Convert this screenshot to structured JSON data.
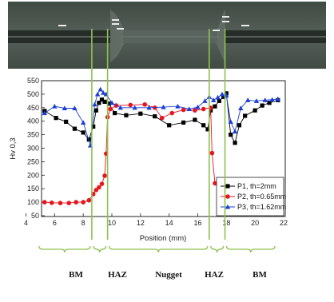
{
  "chart_data": {
    "type": "line",
    "xlabel": "Position (mm)",
    "ylabel": "Hv 0,3",
    "xlim": [
      4,
      22
    ],
    "ylim": [
      50,
      550
    ],
    "x_ticks": [
      4,
      6,
      8,
      10,
      12,
      14,
      16,
      18,
      20,
      22
    ],
    "y_ticks": [
      50,
      100,
      150,
      200,
      250,
      300,
      350,
      400,
      450,
      500,
      550
    ],
    "legend_position": "bottom-right",
    "series": [
      {
        "name": "P1, th=2mm",
        "color": "#000000",
        "marker": "square",
        "points": [
          [
            5.3,
            438
          ],
          [
            6.1,
            412
          ],
          [
            6.8,
            398
          ],
          [
            7.4,
            372
          ],
          [
            8.0,
            358
          ],
          [
            8.4,
            332
          ],
          [
            8.7,
            380
          ],
          [
            8.9,
            440
          ],
          [
            9.1,
            468
          ],
          [
            9.3,
            480
          ],
          [
            9.5,
            472
          ],
          [
            9.8,
            465
          ],
          [
            10.2,
            430
          ],
          [
            11.0,
            422
          ],
          [
            12.0,
            428
          ],
          [
            13.0,
            418
          ],
          [
            14.0,
            385
          ],
          [
            15.0,
            395
          ],
          [
            15.8,
            405
          ],
          [
            16.4,
            385
          ],
          [
            16.7,
            370
          ],
          [
            16.9,
            440
          ],
          [
            17.2,
            455
          ],
          [
            17.5,
            475
          ],
          [
            17.8,
            490
          ],
          [
            18.0,
            503
          ],
          [
            18.3,
            350
          ],
          [
            18.6,
            320
          ],
          [
            18.9,
            385
          ],
          [
            19.3,
            420
          ],
          [
            20.0,
            440
          ],
          [
            20.5,
            458
          ],
          [
            21.0,
            468
          ],
          [
            21.6,
            478
          ]
        ]
      },
      {
        "name": "P2, th=0.65mm",
        "color": "#e8141e",
        "marker": "circle",
        "points": [
          [
            5.3,
            100
          ],
          [
            5.8,
            98
          ],
          [
            6.4,
            97
          ],
          [
            7.0,
            97
          ],
          [
            7.5,
            100
          ],
          [
            8.0,
            100
          ],
          [
            8.4,
            107
          ],
          [
            8.7,
            130
          ],
          [
            8.9,
            145
          ],
          [
            9.1,
            155
          ],
          [
            9.3,
            168
          ],
          [
            9.5,
            198
          ],
          [
            9.6,
            280
          ],
          [
            9.7,
            415
          ],
          [
            9.9,
            445
          ],
          [
            10.3,
            458
          ],
          [
            11.3,
            460
          ],
          [
            12.3,
            462
          ],
          [
            13.0,
            450
          ],
          [
            13.5,
            412
          ],
          [
            14.2,
            430
          ],
          [
            15.0,
            442
          ],
          [
            15.8,
            440
          ],
          [
            16.4,
            445
          ],
          [
            16.9,
            450
          ],
          [
            17.0,
            282
          ],
          [
            17.2,
            170
          ],
          [
            17.5,
            148
          ],
          [
            17.8,
            130
          ],
          [
            18.0,
            108
          ],
          [
            18.4,
            106
          ],
          [
            19.0,
            103
          ],
          [
            19.6,
            100
          ],
          [
            20.3,
            98
          ],
          [
            20.9,
            96
          ],
          [
            21.4,
            97
          ]
        ]
      },
      {
        "name": "P3, th=1.62mm",
        "color": "#1c3fd6",
        "marker": "triangle",
        "points": [
          [
            5.3,
            430
          ],
          [
            6.0,
            455
          ],
          [
            6.7,
            448
          ],
          [
            7.4,
            448
          ],
          [
            8.0,
            395
          ],
          [
            8.5,
            310
          ],
          [
            8.8,
            462
          ],
          [
            9.0,
            500
          ],
          [
            9.2,
            518
          ],
          [
            9.4,
            505
          ],
          [
            9.6,
            500
          ],
          [
            10.0,
            468
          ],
          [
            10.6,
            450
          ],
          [
            11.6,
            450
          ],
          [
            12.6,
            450
          ],
          [
            13.6,
            452
          ],
          [
            14.6,
            455
          ],
          [
            15.4,
            445
          ],
          [
            16.0,
            452
          ],
          [
            16.5,
            475
          ],
          [
            16.8,
            490
          ],
          [
            17.1,
            478
          ],
          [
            17.4,
            488
          ],
          [
            17.7,
            500
          ],
          [
            18.0,
            495
          ],
          [
            18.3,
            398
          ],
          [
            18.6,
            362
          ],
          [
            19.0,
            448
          ],
          [
            19.5,
            478
          ],
          [
            20.1,
            475
          ],
          [
            20.7,
            478
          ],
          [
            21.2,
            480
          ],
          [
            21.6,
            482
          ]
        ]
      }
    ],
    "zone_boundaries": [
      8.6,
      9.7,
      16.8,
      17.9
    ],
    "zone_labels": [
      "BM",
      "HAZ",
      "Nugget",
      "HAZ",
      "BM"
    ],
    "zone_line_color": "#8dc24d",
    "grid": false
  }
}
